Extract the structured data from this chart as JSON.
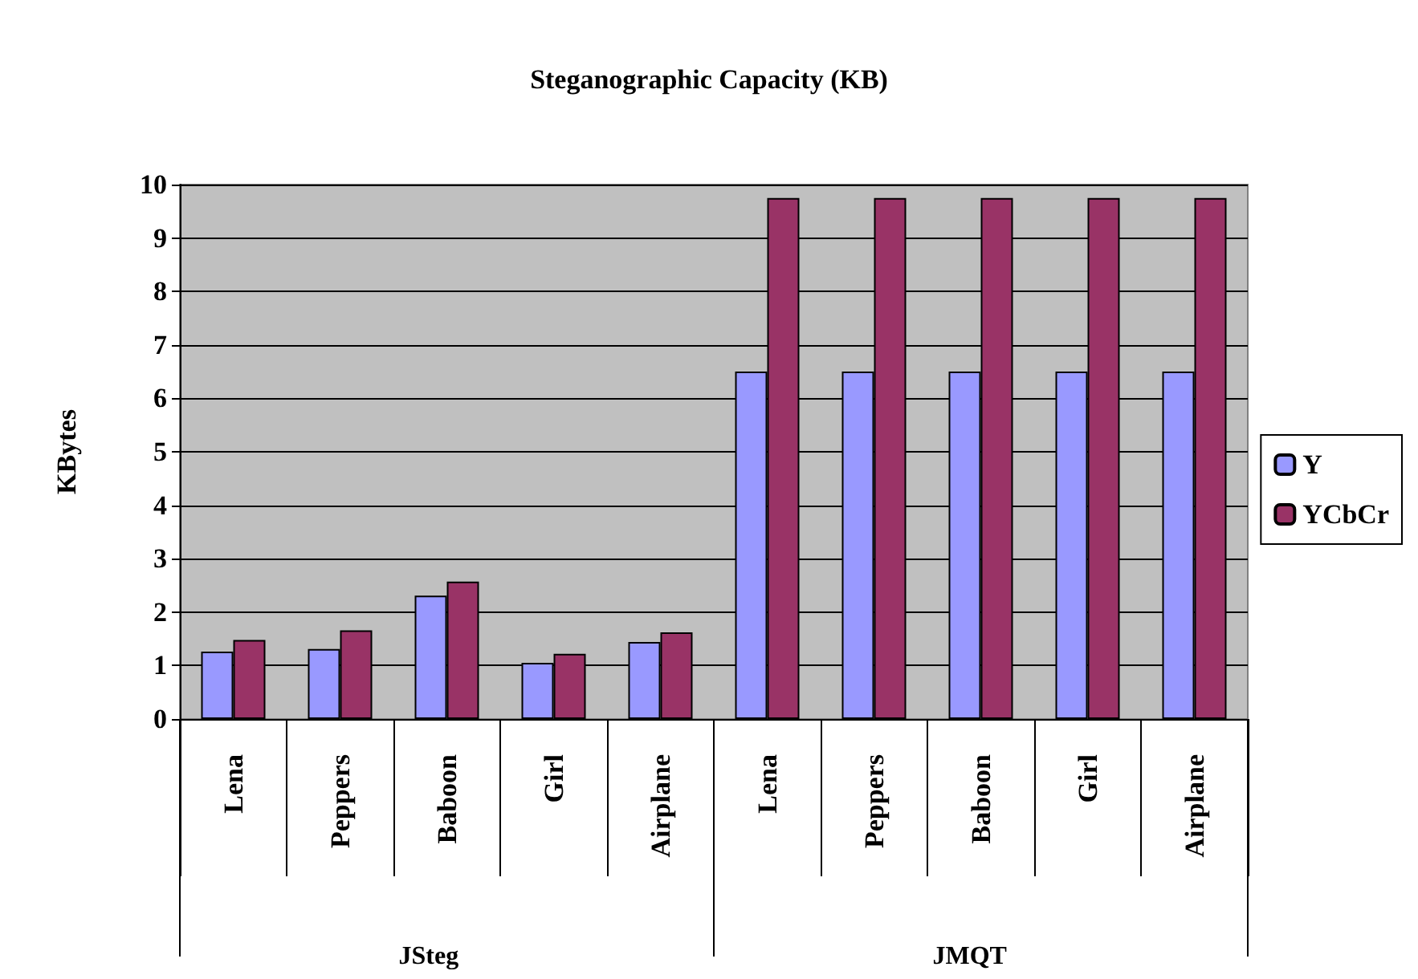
{
  "chart_data": {
    "type": "bar",
    "title": "Steganographic Capacity (KB)",
    "ylabel": "KBytes",
    "categories": [
      "Lena",
      "Peppers",
      "Baboon",
      "Girl",
      "Airplane",
      "Lena",
      "Peppers",
      "Baboon",
      "Girl",
      "Airplane"
    ],
    "series": [
      {
        "name": "Y",
        "color": "#9999ff",
        "values": [
          1.26,
          1.31,
          2.31,
          1.05,
          1.44,
          6.5,
          6.5,
          6.5,
          6.5,
          6.5
        ]
      },
      {
        "name": "YCbCr",
        "color": "#993366",
        "values": [
          1.48,
          1.66,
          2.57,
          1.22,
          1.62,
          9.75,
          9.75,
          9.75,
          9.75,
          9.75
        ]
      }
    ],
    "annotations": [
      "JSteg",
      "JMQT"
    ],
    "ylim": [
      0,
      10
    ],
    "yticks": [
      0,
      1,
      2,
      3,
      4,
      5,
      6,
      7,
      8,
      9,
      10
    ],
    "grid": "y",
    "legend": "right"
  }
}
